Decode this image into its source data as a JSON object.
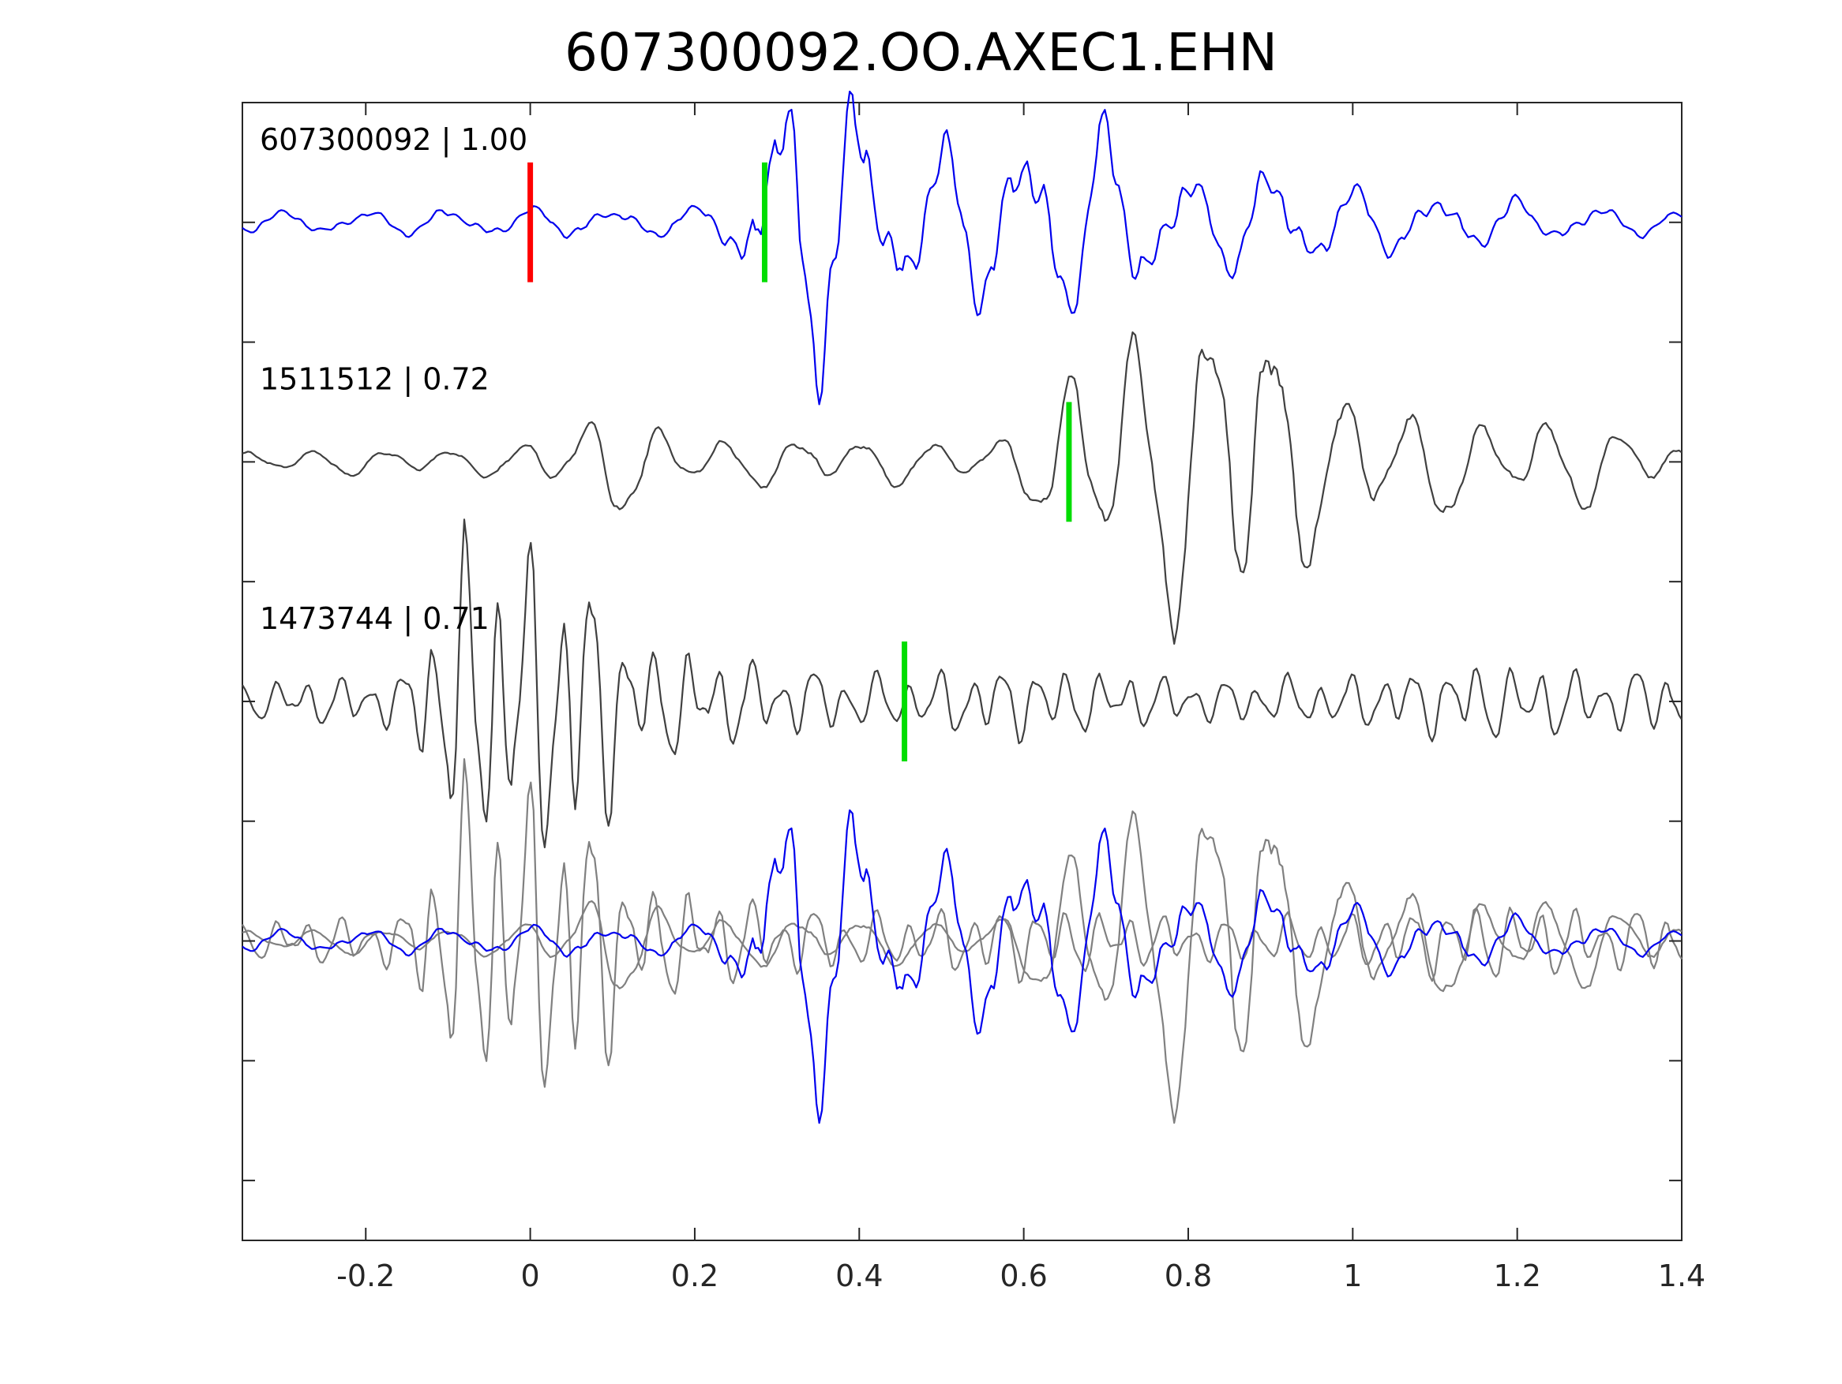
{
  "chart_data": {
    "type": "line",
    "title": "607300092.OO.AXEC1.EHN",
    "xlabel": "",
    "ylabel": "",
    "xlim": [
      -0.35,
      1.4
    ],
    "xticks": [
      -0.2,
      0,
      0.2,
      0.4,
      0.6,
      0.8,
      1,
      1.2,
      1.4
    ],
    "x_tick_labels": [
      "-0.2",
      "0",
      "0.2",
      "0.4",
      "0.6",
      "0.8",
      "1",
      "1.2",
      "1.4"
    ],
    "y_tick_labels": [],
    "grid": false,
    "colors": {
      "master": "#0000ee",
      "neighbor": "#404040",
      "overlay_neighbor": "#808080",
      "pick_reference": "#ff0000",
      "pick": "#00dd00",
      "axis": "#262626"
    },
    "series": [
      {
        "name": "607300092 | 1.00",
        "color": "#0000ee",
        "baseline": 1,
        "pick_red_time": 0.0,
        "pick_green_time": 0.285,
        "envelope": [
          [
            -0.35,
            0.06
          ],
          [
            -0.1,
            0.08
          ],
          [
            0.0,
            0.09
          ],
          [
            0.2,
            0.09
          ],
          [
            0.25,
            0.22
          ],
          [
            0.28,
            0.62
          ],
          [
            0.33,
            1.0
          ],
          [
            0.4,
            0.8
          ],
          [
            0.45,
            0.45
          ],
          [
            0.57,
            0.55
          ],
          [
            0.63,
            0.56
          ],
          [
            0.69,
            0.62
          ],
          [
            0.74,
            0.42
          ],
          [
            0.82,
            0.28
          ],
          [
            0.9,
            0.34
          ],
          [
            1.0,
            0.22
          ],
          [
            1.2,
            0.14
          ],
          [
            1.4,
            0.06
          ]
        ],
        "components": [
          [
            10,
            0.8,
            0.0
          ],
          [
            16,
            0.25,
            1.3
          ],
          [
            42,
            0.18,
            2.1
          ]
        ],
        "seed": 7
      },
      {
        "name": "1511512 | 0.72",
        "color": "#404040",
        "baseline": 3,
        "pick_green_time": 0.655,
        "envelope": [
          [
            -0.35,
            0.06
          ],
          [
            -0.05,
            0.07
          ],
          [
            0.0,
            0.12
          ],
          [
            0.1,
            0.26
          ],
          [
            0.2,
            0.12
          ],
          [
            0.4,
            0.12
          ],
          [
            0.55,
            0.1
          ],
          [
            0.62,
            0.22
          ],
          [
            0.68,
            0.7
          ],
          [
            0.75,
            0.82
          ],
          [
            0.8,
            0.8
          ],
          [
            0.87,
            1.0
          ],
          [
            0.95,
            0.45
          ],
          [
            1.05,
            0.3
          ],
          [
            1.15,
            0.24
          ],
          [
            1.3,
            0.22
          ],
          [
            1.4,
            0.08
          ]
        ],
        "components": [
          [
            12,
            0.8,
            0.9
          ],
          [
            6,
            0.3,
            0.4
          ],
          [
            26,
            0.15,
            2.6
          ]
        ],
        "seed": 19
      },
      {
        "name": "1473744 | 0.71",
        "color": "#404040",
        "baseline": 5,
        "pick_green_time": 0.455,
        "envelope": [
          [
            -0.35,
            0.1
          ],
          [
            -0.15,
            0.16
          ],
          [
            -0.1,
            0.8
          ],
          [
            -0.05,
            0.9
          ],
          [
            0.0,
            0.8
          ],
          [
            0.03,
            1.0
          ],
          [
            0.07,
            0.85
          ],
          [
            0.12,
            0.35
          ],
          [
            0.3,
            0.2
          ],
          [
            0.45,
            0.15
          ],
          [
            0.6,
            0.2
          ],
          [
            0.8,
            0.12
          ],
          [
            1.0,
            0.14
          ],
          [
            1.15,
            0.22
          ],
          [
            1.3,
            0.16
          ],
          [
            1.4,
            0.2
          ]
        ],
        "components": [
          [
            26,
            0.7,
            0.2
          ],
          [
            14,
            0.3,
            1.7
          ],
          [
            48,
            0.2,
            0.5
          ]
        ],
        "seed": 31
      }
    ],
    "overlay": {
      "baseline": 7,
      "shifts": [
        0.0,
        0.0,
        0.0
      ]
    }
  }
}
